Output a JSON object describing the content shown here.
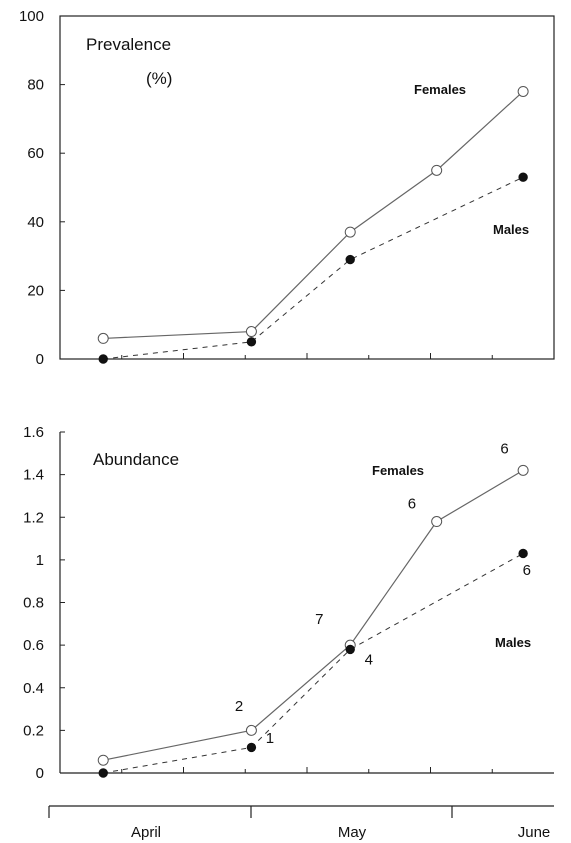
{
  "chart_data": [
    {
      "type": "line",
      "title": "Prevalence",
      "subtitle": "(%)",
      "ylim": [
        0,
        100
      ],
      "yticks": [
        "0",
        "20",
        "40",
        "60",
        "80",
        "100"
      ],
      "series": [
        {
          "name": "Females",
          "marker": "open-circle",
          "style": "solid",
          "points": [
            [
              0.35,
              6
            ],
            [
              1.55,
              8
            ],
            [
              2.35,
              37
            ],
            [
              3.05,
              55
            ],
            [
              3.75,
              78
            ]
          ]
        },
        {
          "name": "Males",
          "marker": "filled-circle",
          "style": "dashed",
          "points": [
            [
              0.35,
              0
            ],
            [
              1.55,
              5
            ],
            [
              2.35,
              29
            ],
            [
              3.75,
              53
            ]
          ]
        }
      ]
    },
    {
      "type": "line",
      "title": "Abundance",
      "ylim": [
        0,
        1.6
      ],
      "yticks": [
        "0",
        "0.2",
        "0.4",
        "0.6",
        "0.8",
        "1",
        "1.2",
        "1.4",
        "1.6"
      ],
      "series": [
        {
          "name": "Females",
          "marker": "open-circle",
          "style": "solid",
          "points": [
            [
              0.35,
              0.06
            ],
            [
              1.55,
              0.2
            ],
            [
              2.35,
              0.6
            ],
            [
              3.05,
              1.18
            ],
            [
              3.75,
              1.42
            ]
          ]
        },
        {
          "name": "Males",
          "marker": "filled-circle",
          "style": "dashed",
          "points": [
            [
              0.35,
              0
            ],
            [
              1.55,
              0.12
            ],
            [
              2.35,
              0.58
            ],
            [
              3.75,
              1.03
            ]
          ]
        }
      ],
      "annotations": [
        {
          "text": "2",
          "x": 1.45,
          "y": 0.29
        },
        {
          "text": "1",
          "x": 1.7,
          "y": 0.14
        },
        {
          "text": "7",
          "x": 2.1,
          "y": 0.7
        },
        {
          "text": "4",
          "x": 2.5,
          "y": 0.51
        },
        {
          "text": "6",
          "x": 2.85,
          "y": 1.24
        },
        {
          "text": "6",
          "x": 3.6,
          "y": 1.5
        },
        {
          "text": "6",
          "x": 3.78,
          "y": 0.93
        }
      ]
    }
  ],
  "shared_x_axis": {
    "categories": [
      "April",
      "May",
      "June"
    ],
    "xlim": [
      0,
      4
    ]
  }
}
